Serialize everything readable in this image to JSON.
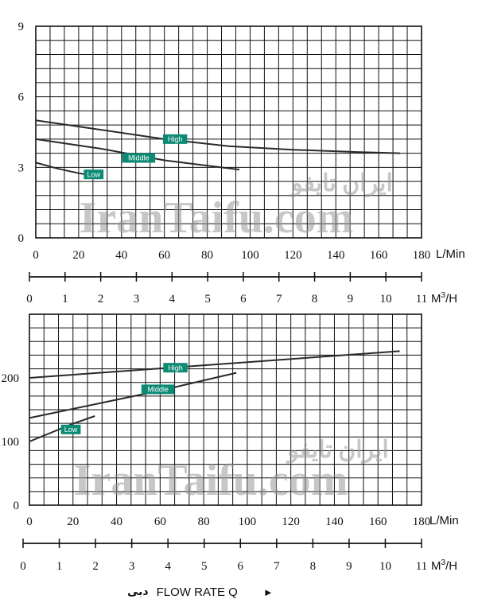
{
  "watermark": {
    "latin": "IranTaifu.com",
    "farsi": "ایران تایفو"
  },
  "footer": {
    "farsi_label": "دبی",
    "label": "FLOW RATE Q",
    "arrow": "►"
  },
  "chart_data": [
    {
      "type": "line",
      "xlabel": "L/Min",
      "secondary_xlabel": "M³/H",
      "secondary_xlabel_base": "M",
      "secondary_xlabel_sup": "3",
      "secondary_xlabel_tail": "/H",
      "xlim": [
        0,
        180
      ],
      "ylim": [
        0,
        9
      ],
      "x_ticks": [
        0,
        20,
        40,
        60,
        80,
        100,
        120,
        140,
        160,
        180
      ],
      "y_ticks": [
        0,
        3,
        6,
        9
      ],
      "secondary_ticks": [
        0,
        1,
        2,
        3,
        4,
        5,
        6,
        7,
        8,
        9,
        10,
        11
      ],
      "grid": true,
      "series": [
        {
          "name": "High",
          "x": [
            0,
            30,
            60,
            90,
            120,
            150,
            170
          ],
          "y": [
            5.0,
            4.6,
            4.2,
            3.9,
            3.75,
            3.65,
            3.6
          ],
          "label_x": 65,
          "label_y": 4.2
        },
        {
          "name": "Middle",
          "x": [
            0,
            30,
            60,
            95
          ],
          "y": [
            4.2,
            3.8,
            3.3,
            2.9
          ],
          "label_x": 48,
          "label_y": 3.4
        },
        {
          "name": "Low",
          "x": [
            0,
            10,
            20,
            30
          ],
          "y": [
            3.2,
            2.95,
            2.75,
            2.6
          ],
          "label_x": 27,
          "label_y": 2.7
        }
      ]
    },
    {
      "type": "line",
      "xlabel": "L/Min",
      "secondary_xlabel": "M³/H",
      "secondary_xlabel_base": "M",
      "secondary_xlabel_sup": "3",
      "secondary_xlabel_tail": "/H",
      "xlim": [
        0,
        180
      ],
      "ylim": [
        0,
        300
      ],
      "x_ticks": [
        0,
        20,
        40,
        60,
        80,
        100,
        120,
        140,
        160,
        180
      ],
      "y_ticks": [
        0,
        100,
        200
      ],
      "secondary_ticks": [
        0,
        1,
        2,
        3,
        4,
        5,
        6,
        7,
        8,
        9,
        10,
        11
      ],
      "grid": true,
      "series": [
        {
          "name": "High",
          "x": [
            0,
            170
          ],
          "y": [
            200,
            242
          ],
          "label_x": 67,
          "label_y": 216
        },
        {
          "name": "Middle",
          "x": [
            0,
            60,
            95
          ],
          "y": [
            137,
            180,
            208
          ],
          "label_x": 59,
          "label_y": 182
        },
        {
          "name": "Low",
          "x": [
            0,
            20,
            30
          ],
          "y": [
            100,
            128,
            140
          ],
          "label_x": 19,
          "label_y": 119
        }
      ]
    }
  ]
}
